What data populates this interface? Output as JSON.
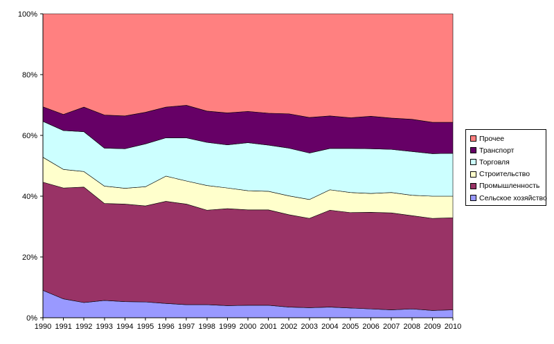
{
  "chart_data": {
    "type": "area",
    "stacked": "percent",
    "title": "",
    "xlabel": "",
    "ylabel": "",
    "x": [
      "1990",
      "1991",
      "1992",
      "1993",
      "1994",
      "1995",
      "1996",
      "1997",
      "1998",
      "1999",
      "2000",
      "2001",
      "2002",
      "2003",
      "2004",
      "2005",
      "2006",
      "2007",
      "2008",
      "2009",
      "2010"
    ],
    "ylim": [
      0,
      100
    ],
    "yticks": [
      "0%",
      "20%",
      "40%",
      "60%",
      "80%",
      "100%"
    ],
    "legend_position": "right",
    "series": [
      {
        "name": "Сельское хозяйство",
        "color": "#9999FF",
        "values": [
          9.0,
          6.2,
          5.0,
          5.7,
          5.3,
          5.2,
          4.7,
          4.3,
          4.3,
          4.0,
          4.1,
          4.1,
          3.5,
          3.3,
          3.5,
          3.2,
          2.9,
          2.6,
          2.9,
          2.4,
          2.6
        ]
      },
      {
        "name": "Промышленность",
        "color": "#993366",
        "values": [
          35.6,
          36.5,
          38.0,
          31.9,
          32.1,
          31.6,
          33.6,
          33.1,
          31.1,
          31.9,
          31.4,
          31.4,
          30.4,
          29.4,
          31.9,
          31.4,
          31.8,
          31.9,
          30.7,
          30.3,
          30.3
        ]
      },
      {
        "name": "Строительство",
        "color": "#FFFFCC",
        "values": [
          8.2,
          6.1,
          5.1,
          5.7,
          5.2,
          6.3,
          8.3,
          7.6,
          8.1,
          6.8,
          6.3,
          6.1,
          6.2,
          6.2,
          6.7,
          6.6,
          6.2,
          6.7,
          6.7,
          7.3,
          7.1
        ]
      },
      {
        "name": "Торговля",
        "color": "#CCFFFF",
        "values": [
          11.8,
          12.8,
          13.1,
          12.5,
          13.0,
          14.1,
          12.6,
          14.2,
          14.2,
          14.2,
          15.8,
          15.2,
          15.7,
          15.3,
          13.6,
          14.5,
          14.7,
          14.2,
          14.4,
          14.0,
          14.1
        ]
      },
      {
        "name": "Транспорт",
        "color": "#660066",
        "values": [
          4.8,
          5.3,
          8.1,
          10.9,
          10.8,
          10.4,
          10.1,
          10.7,
          10.3,
          10.5,
          10.3,
          10.5,
          11.3,
          11.7,
          10.7,
          10.1,
          10.7,
          10.3,
          10.6,
          10.3,
          10.2
        ]
      },
      {
        "name": "Прочее",
        "color": "#FF8080",
        "values": [
          30.6,
          33.1,
          30.7,
          33.3,
          33.6,
          32.4,
          30.7,
          30.1,
          32.0,
          32.6,
          32.1,
          32.7,
          32.9,
          34.1,
          33.6,
          34.2,
          33.7,
          34.3,
          34.7,
          35.7,
          35.7
        ]
      }
    ]
  }
}
